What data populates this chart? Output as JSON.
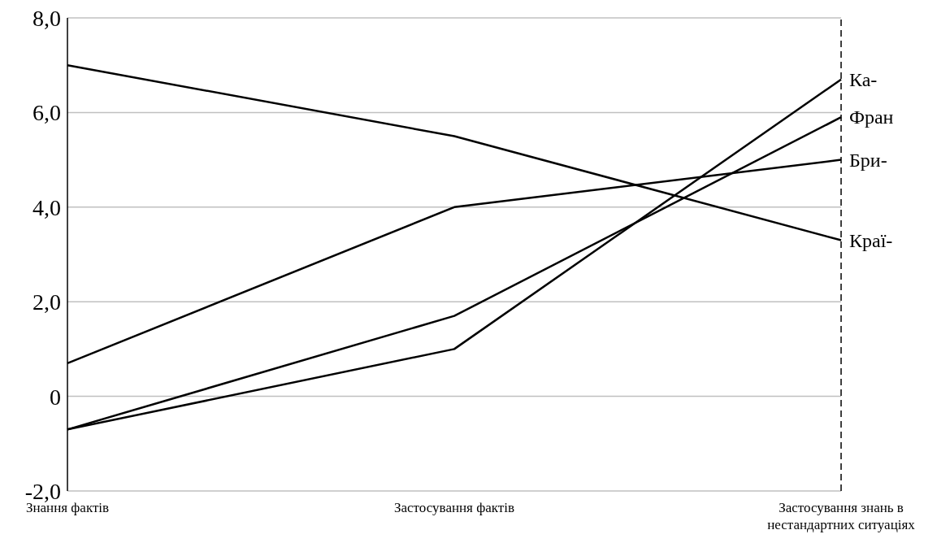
{
  "chart_data": {
    "type": "line",
    "categories": [
      "Знання фактів",
      "Застосування фактів",
      "Застосування знань в нестандартних ситуаціях"
    ],
    "series": [
      {
        "name": "Ка-",
        "color": "#000000",
        "values": [
          -0.7,
          1.0,
          6.7
        ]
      },
      {
        "name": "Фран",
        "color": "#000000",
        "values": [
          -0.7,
          1.7,
          5.9
        ]
      },
      {
        "name": "Бри-",
        "color": "#000000",
        "values": [
          0.7,
          4.0,
          5.0
        ]
      },
      {
        "name": "Краї-",
        "color": "#000000",
        "values": [
          7.0,
          5.5,
          3.3
        ]
      }
    ],
    "ylim": [
      -2,
      8
    ],
    "yticks": [
      {
        "value": -2,
        "label": "-2,0"
      },
      {
        "value": 0,
        "label": "0"
      },
      {
        "value": 2,
        "label": "2,0"
      },
      {
        "value": 4,
        "label": "4,0"
      },
      {
        "value": 6,
        "label": "6,0"
      },
      {
        "value": 8,
        "label": "8,0"
      }
    ],
    "grid": "y",
    "marker": "none",
    "line_style": "solid",
    "legend": false,
    "ref_lines": [
      {
        "axis": "x",
        "value": "Застосування знань в нестандартних ситуаціях",
        "label": null,
        "color": "#000000",
        "line_style": "dashed"
      }
    ]
  }
}
